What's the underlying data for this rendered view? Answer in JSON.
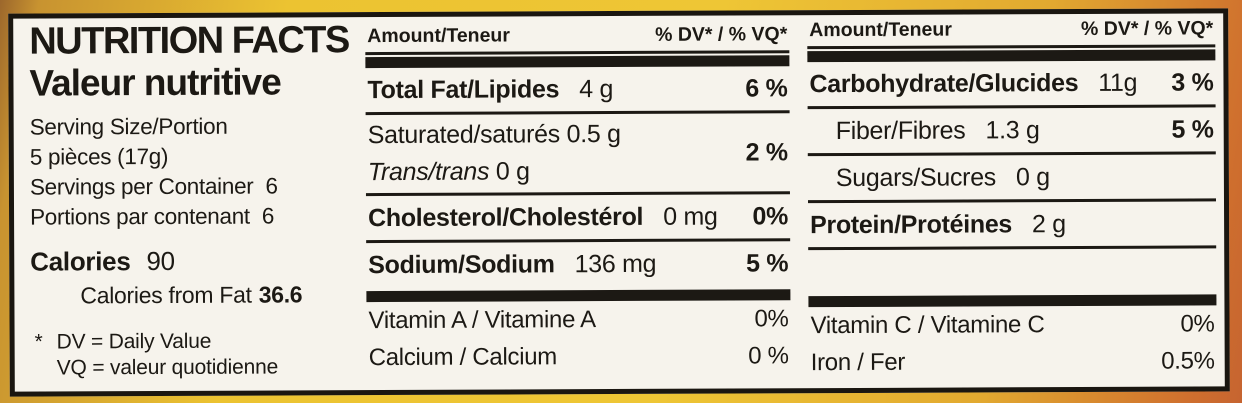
{
  "left": {
    "title_en": "NUTRITION FACTS",
    "title_fr": "Valeur nutritive",
    "serving_size_label": "Serving Size/Portion",
    "serving_size_value": "5 pièces (17g)",
    "servings_en_label": "Servings per Container",
    "servings_en_value": "6",
    "servings_fr_label": "Portions par contenant",
    "servings_fr_value": "6",
    "calories_label": "Calories",
    "calories_value": "90",
    "calories_fat_label": "Calories from Fat",
    "calories_fat_value": "36.6",
    "footnote_mark": "*",
    "footnote_line1": "DV = Daily Value",
    "footnote_line2": "VQ = valeur quotidienne"
  },
  "mid": {
    "header_amount": "Amount/Teneur",
    "header_dv": "% DV* / % VQ*",
    "rows": {
      "total_fat": {
        "name": "Total Fat/Lipides",
        "amount": "4 g",
        "dv": "6 %"
      },
      "saturated": {
        "name": "Saturated/saturés",
        "amount": "0.5 g",
        "dv": "2 %"
      },
      "trans": {
        "name": "Trans/trans",
        "amount": "0 g"
      },
      "cholesterol": {
        "name": "Cholesterol/Cholestérol",
        "amount": "0 mg",
        "dv": "0%"
      },
      "sodium": {
        "name": "Sodium/Sodium",
        "amount": "136 mg",
        "dv": "5 %"
      },
      "vitamin_a": {
        "name": "Vitamin A / Vitamine A",
        "dv": "0%"
      },
      "calcium": {
        "name": "Calcium / Calcium",
        "dv": "0 %"
      }
    }
  },
  "right": {
    "header_amount": "Amount/Teneur",
    "header_dv": "% DV* / % VQ*",
    "rows": {
      "carbohydrate": {
        "name": "Carbohydrate/Glucides",
        "amount": "11g",
        "dv": "3 %"
      },
      "fiber": {
        "name": "Fiber/Fibres",
        "amount": "1.3 g",
        "dv": "5 %"
      },
      "sugars": {
        "name": "Sugars/Sucres",
        "amount": "0 g"
      },
      "protein": {
        "name": "Protein/Protéines",
        "amount": "2 g"
      },
      "vitamin_c": {
        "name": "Vitamin C / Vitamine C",
        "dv": "0%"
      },
      "iron": {
        "name": "Iron / Fer",
        "dv": "0.5%"
      }
    }
  },
  "colors": {
    "label_bg": "#f6f3ec",
    "ink": "#1c1914",
    "package_yellow": "#ecc331",
    "package_orange": "#cc682d",
    "package_brown": "#9c672c"
  }
}
